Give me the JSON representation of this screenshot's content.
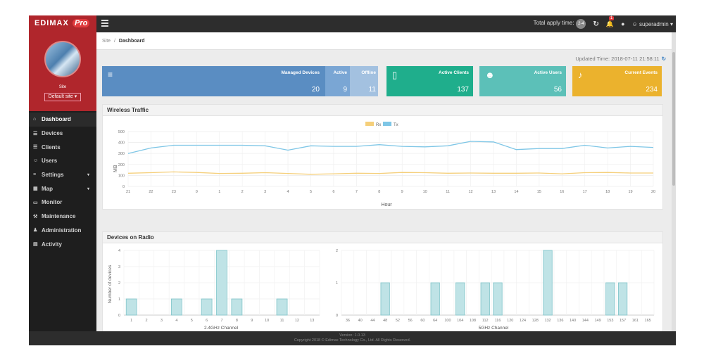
{
  "header": {
    "brand": "EDIMAX",
    "brand_pro": "Pro",
    "apply_label": "Total apply time:",
    "apply_badge": "2-4",
    "notif_count": "1",
    "user": "superadmin"
  },
  "sidebar": {
    "site_label": "Site",
    "site_select": "Default site ▾",
    "items": [
      {
        "label": "Dashboard",
        "icon": "⌂"
      },
      {
        "label": "Devices",
        "icon": "☰"
      },
      {
        "label": "Clients",
        "icon": "☰"
      },
      {
        "label": "Users",
        "icon": "☺"
      },
      {
        "label": "Settings",
        "icon": "≡",
        "caret": "▾"
      },
      {
        "label": "Map",
        "icon": "▦",
        "caret": "▾"
      },
      {
        "label": "Monitor",
        "icon": "▭"
      },
      {
        "label": "Maintenance",
        "icon": "⚒"
      },
      {
        "label": "Administration",
        "icon": "♟"
      },
      {
        "label": "Activity",
        "icon": "▤"
      }
    ]
  },
  "breadcrumb": {
    "site": "Site",
    "sep": "/",
    "page": "Dashboard"
  },
  "updated": "Updated Time: 2018-07-11 21:58:11",
  "tiles": {
    "managed": {
      "label": "Managed Devices",
      "value": "20",
      "color": "#5a8dc2"
    },
    "active": {
      "label": "Active",
      "value": "9",
      "color": "#7aa6d4"
    },
    "offline": {
      "label": "Offline",
      "value": "11",
      "color": "#a3c1e0"
    },
    "clients": {
      "label": "Active Clients",
      "value": "137",
      "color": "#1fae8c"
    },
    "users": {
      "label": "Active Users",
      "value": "56",
      "color": "#5cc0b8"
    },
    "events": {
      "label": "Current Events",
      "value": "234",
      "color": "#ebb22d"
    }
  },
  "traffic": {
    "title": "Wireless Traffic",
    "legend_rx": "Rx",
    "legend_tx": "Tx",
    "rx_color": "#f5cf7a",
    "tx_color": "#7ec6e6"
  },
  "radio": {
    "title": "Devices on Radio"
  },
  "footer": {
    "version": "Version: 1.0.13",
    "copyright": "Copyright 2018 © Edimax Technology Co., Ltd. All Rights Reserved."
  },
  "chart_data": [
    {
      "type": "line",
      "title": "Wireless Traffic",
      "xlabel": "Hour",
      "ylabel": "MB",
      "x": [
        "21",
        "22",
        "23",
        "0",
        "1",
        "2",
        "3",
        "4",
        "5",
        "6",
        "7",
        "8",
        "9",
        "10",
        "11",
        "12",
        "13",
        "14",
        "15",
        "16",
        "17",
        "18",
        "19",
        "20"
      ],
      "ylim": [
        0,
        500
      ],
      "yticks": [
        0,
        100,
        200,
        300,
        400,
        500
      ],
      "series": [
        {
          "name": "Tx",
          "values": [
            300,
            350,
            375,
            375,
            375,
            375,
            370,
            330,
            370,
            365,
            365,
            380,
            365,
            360,
            370,
            410,
            405,
            335,
            345,
            345,
            375,
            350,
            365,
            355
          ]
        },
        {
          "name": "Rx",
          "values": [
            120,
            125,
            132,
            127,
            118,
            120,
            125,
            118,
            110,
            115,
            120,
            118,
            127,
            125,
            120,
            122,
            120,
            120,
            122,
            115,
            125,
            127,
            122,
            122
          ]
        }
      ]
    },
    {
      "type": "bar",
      "title": "Devices on Radio",
      "xlabel": "2.4GHz Channel",
      "ylabel": "Number of devices",
      "categories": [
        "1",
        "2",
        "3",
        "4",
        "5",
        "6",
        "7",
        "8",
        "9",
        "10",
        "11",
        "12",
        "13"
      ],
      "values": [
        1,
        0,
        0,
        1,
        0,
        1,
        4,
        1,
        0,
        0,
        1,
        0,
        0
      ],
      "ylim": [
        0,
        4
      ],
      "yticks": [
        0,
        1,
        2,
        3,
        4
      ]
    },
    {
      "type": "bar",
      "xlabel": "5GHz Channel",
      "categories": [
        "36",
        "40",
        "44",
        "48",
        "52",
        "56",
        "60",
        "64",
        "100",
        "104",
        "108",
        "112",
        "116",
        "120",
        "124",
        "128",
        "132",
        "136",
        "140",
        "144",
        "149",
        "153",
        "157",
        "161",
        "165"
      ],
      "values": [
        0,
        0,
        0,
        1,
        0,
        0,
        0,
        1,
        0,
        1,
        0,
        1,
        1,
        0,
        0,
        0,
        2,
        0,
        0,
        0,
        0,
        1,
        1,
        0,
        0
      ],
      "ylim": [
        0,
        2
      ],
      "yticks": [
        0,
        1,
        2
      ]
    }
  ]
}
